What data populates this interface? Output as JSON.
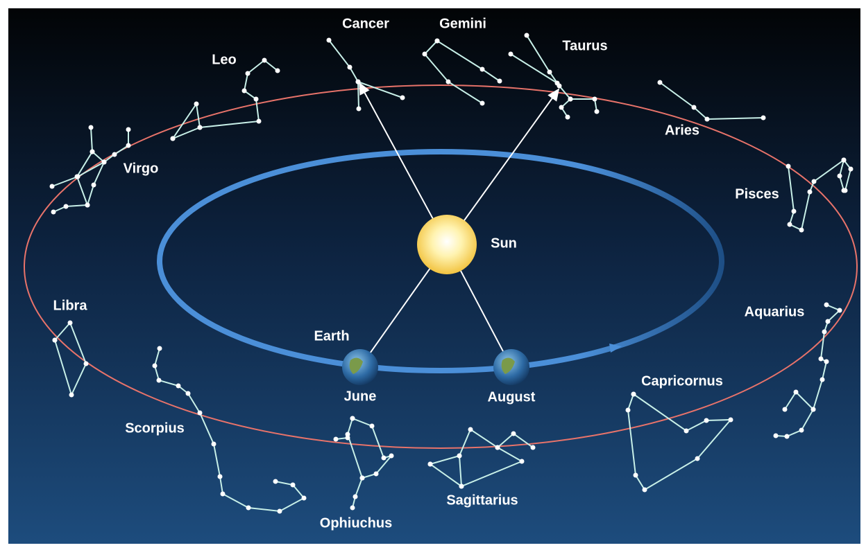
{
  "constellations": [
    "Cancer",
    "Gemini",
    "Taurus",
    "Leo",
    "Aries",
    "Virgo",
    "Pisces",
    "Libra",
    "Aquarius",
    "Capricornus",
    "Scorpius",
    "Ophiuchus",
    "Sagittarius"
  ],
  "sun": "Sun",
  "earth": "Earth",
  "months": [
    "June",
    "August"
  ]
}
